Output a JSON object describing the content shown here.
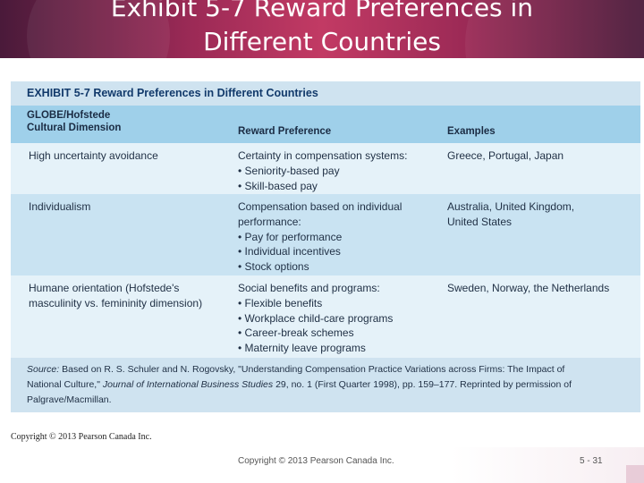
{
  "slide": {
    "title_line1": "Exhibit 5-7 Reward Preferences in",
    "title_line2": "Different Countries"
  },
  "exhibit": {
    "title": "EXHIBIT 5-7  Reward Preferences in Different Countries",
    "headers": {
      "dimension_line1": "GLOBE/Hofstede",
      "dimension_line2": "Cultural Dimension",
      "preference": "Reward Preference",
      "examples": "Examples"
    },
    "rows": [
      {
        "dimension": [
          "High uncertainty avoidance"
        ],
        "preference": [
          "Certainty in compensation systems:",
          "• Seniority-based pay",
          "• Skill-based pay"
        ],
        "examples": [
          "Greece, Portugal, Japan"
        ]
      },
      {
        "dimension": [
          "Individualism"
        ],
        "preference": [
          "Compensation based on individual",
          "performance:",
          "• Pay for performance",
          "• Individual incentives",
          "• Stock options"
        ],
        "examples": [
          "Australia, United Kingdom,",
          "United States"
        ]
      },
      {
        "dimension": [
          "Humane orientation (Hofstede's",
          "masculinity vs. femininity dimension)"
        ],
        "preference": [
          "Social benefits and programs:",
          "• Flexible benefits",
          "• Workplace child-care programs",
          "• Career-break schemes",
          "• Maternity leave programs"
        ],
        "examples": [
          "Sweden, Norway, the Netherlands"
        ]
      }
    ],
    "source": {
      "label": "Source:",
      "text1": " Based on R. S. Schuler and N. Rogovsky, \"Understanding Compensation Practice Variations across Firms: The Impact of",
      "text2": "National Culture,\" ",
      "journal": "Journal of International Business Studies",
      "text3": " 29, no. 1 (First Quarter 1998), pp. 159–177. Reprinted by permission of",
      "text4": "Palgrave/Macmillan."
    }
  },
  "copyright_small": "Copyright © 2013 Pearson Canada Inc.",
  "footer": {
    "copyright": "Copyright © 2013 Pearson Canada Inc.",
    "page": "5 - 31"
  },
  "colors": {
    "header_accent": "#c23a64",
    "header_dark": "#4a1a3a",
    "table_header": "#9fd0ea",
    "row_light": "#e5f2f9",
    "row_dark": "#c9e3f2",
    "title_band": "#cfe3f0"
  }
}
